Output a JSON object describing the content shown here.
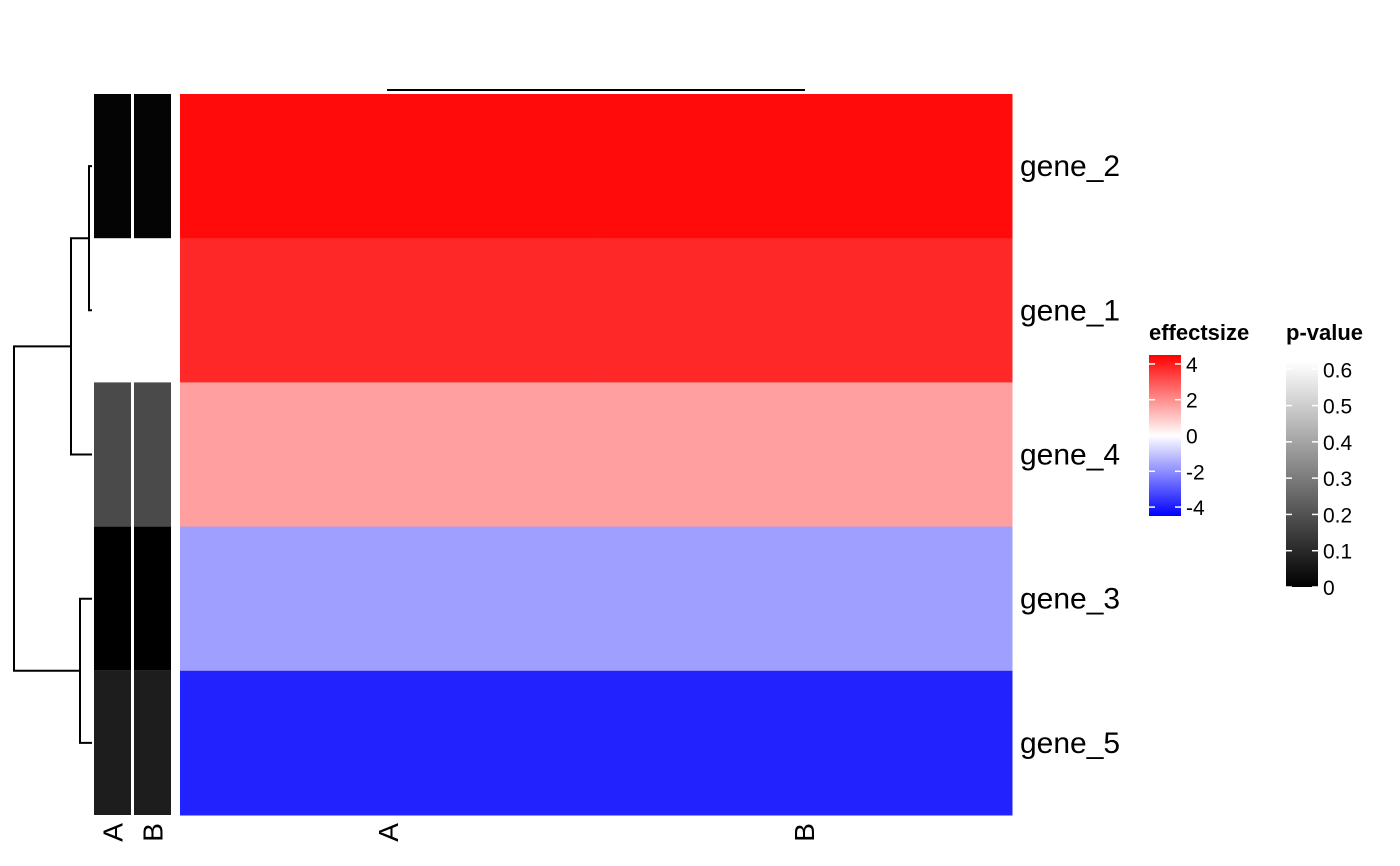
{
  "chart_data": {
    "type": "heatmap",
    "title": "",
    "rows": [
      "gene_2",
      "gene_1",
      "gene_4",
      "gene_3",
      "gene_5"
    ],
    "columns": [
      "A",
      "B"
    ],
    "effectsize": [
      [
        4.3,
        4.3
      ],
      [
        3.8,
        3.8
      ],
      [
        1.7,
        1.7
      ],
      [
        -1.7,
        -1.7
      ],
      [
        -3.9,
        -3.9
      ]
    ],
    "annotation_columns": [
      "A",
      "B"
    ],
    "pvalue": [
      [
        0.01,
        0.01
      ],
      [
        null,
        null
      ],
      [
        0.18,
        0.18
      ],
      [
        0.0,
        0.0
      ],
      [
        0.07,
        0.07
      ]
    ],
    "row_dendrogram": true,
    "column_dendrogram": true,
    "legends": [
      {
        "title": "effectsize",
        "ticks": [
          "4",
          "2",
          "0",
          "-2",
          "-4"
        ],
        "tick_values": [
          4,
          2,
          0,
          -2,
          -4
        ],
        "range": [
          -4.5,
          4.5
        ],
        "colors": [
          "#0000ff",
          "#ffffff",
          "#ff0000"
        ]
      },
      {
        "title": "p-value",
        "ticks": [
          "0.6",
          "0.5",
          "0.4",
          "0.3",
          "0.2",
          "0.1",
          "0"
        ],
        "tick_values": [
          0.6,
          0.5,
          0.4,
          0.3,
          0.2,
          0.1,
          0
        ],
        "range": [
          0,
          0.62
        ],
        "colors": [
          "#000000",
          "#ffffff"
        ]
      }
    ]
  }
}
